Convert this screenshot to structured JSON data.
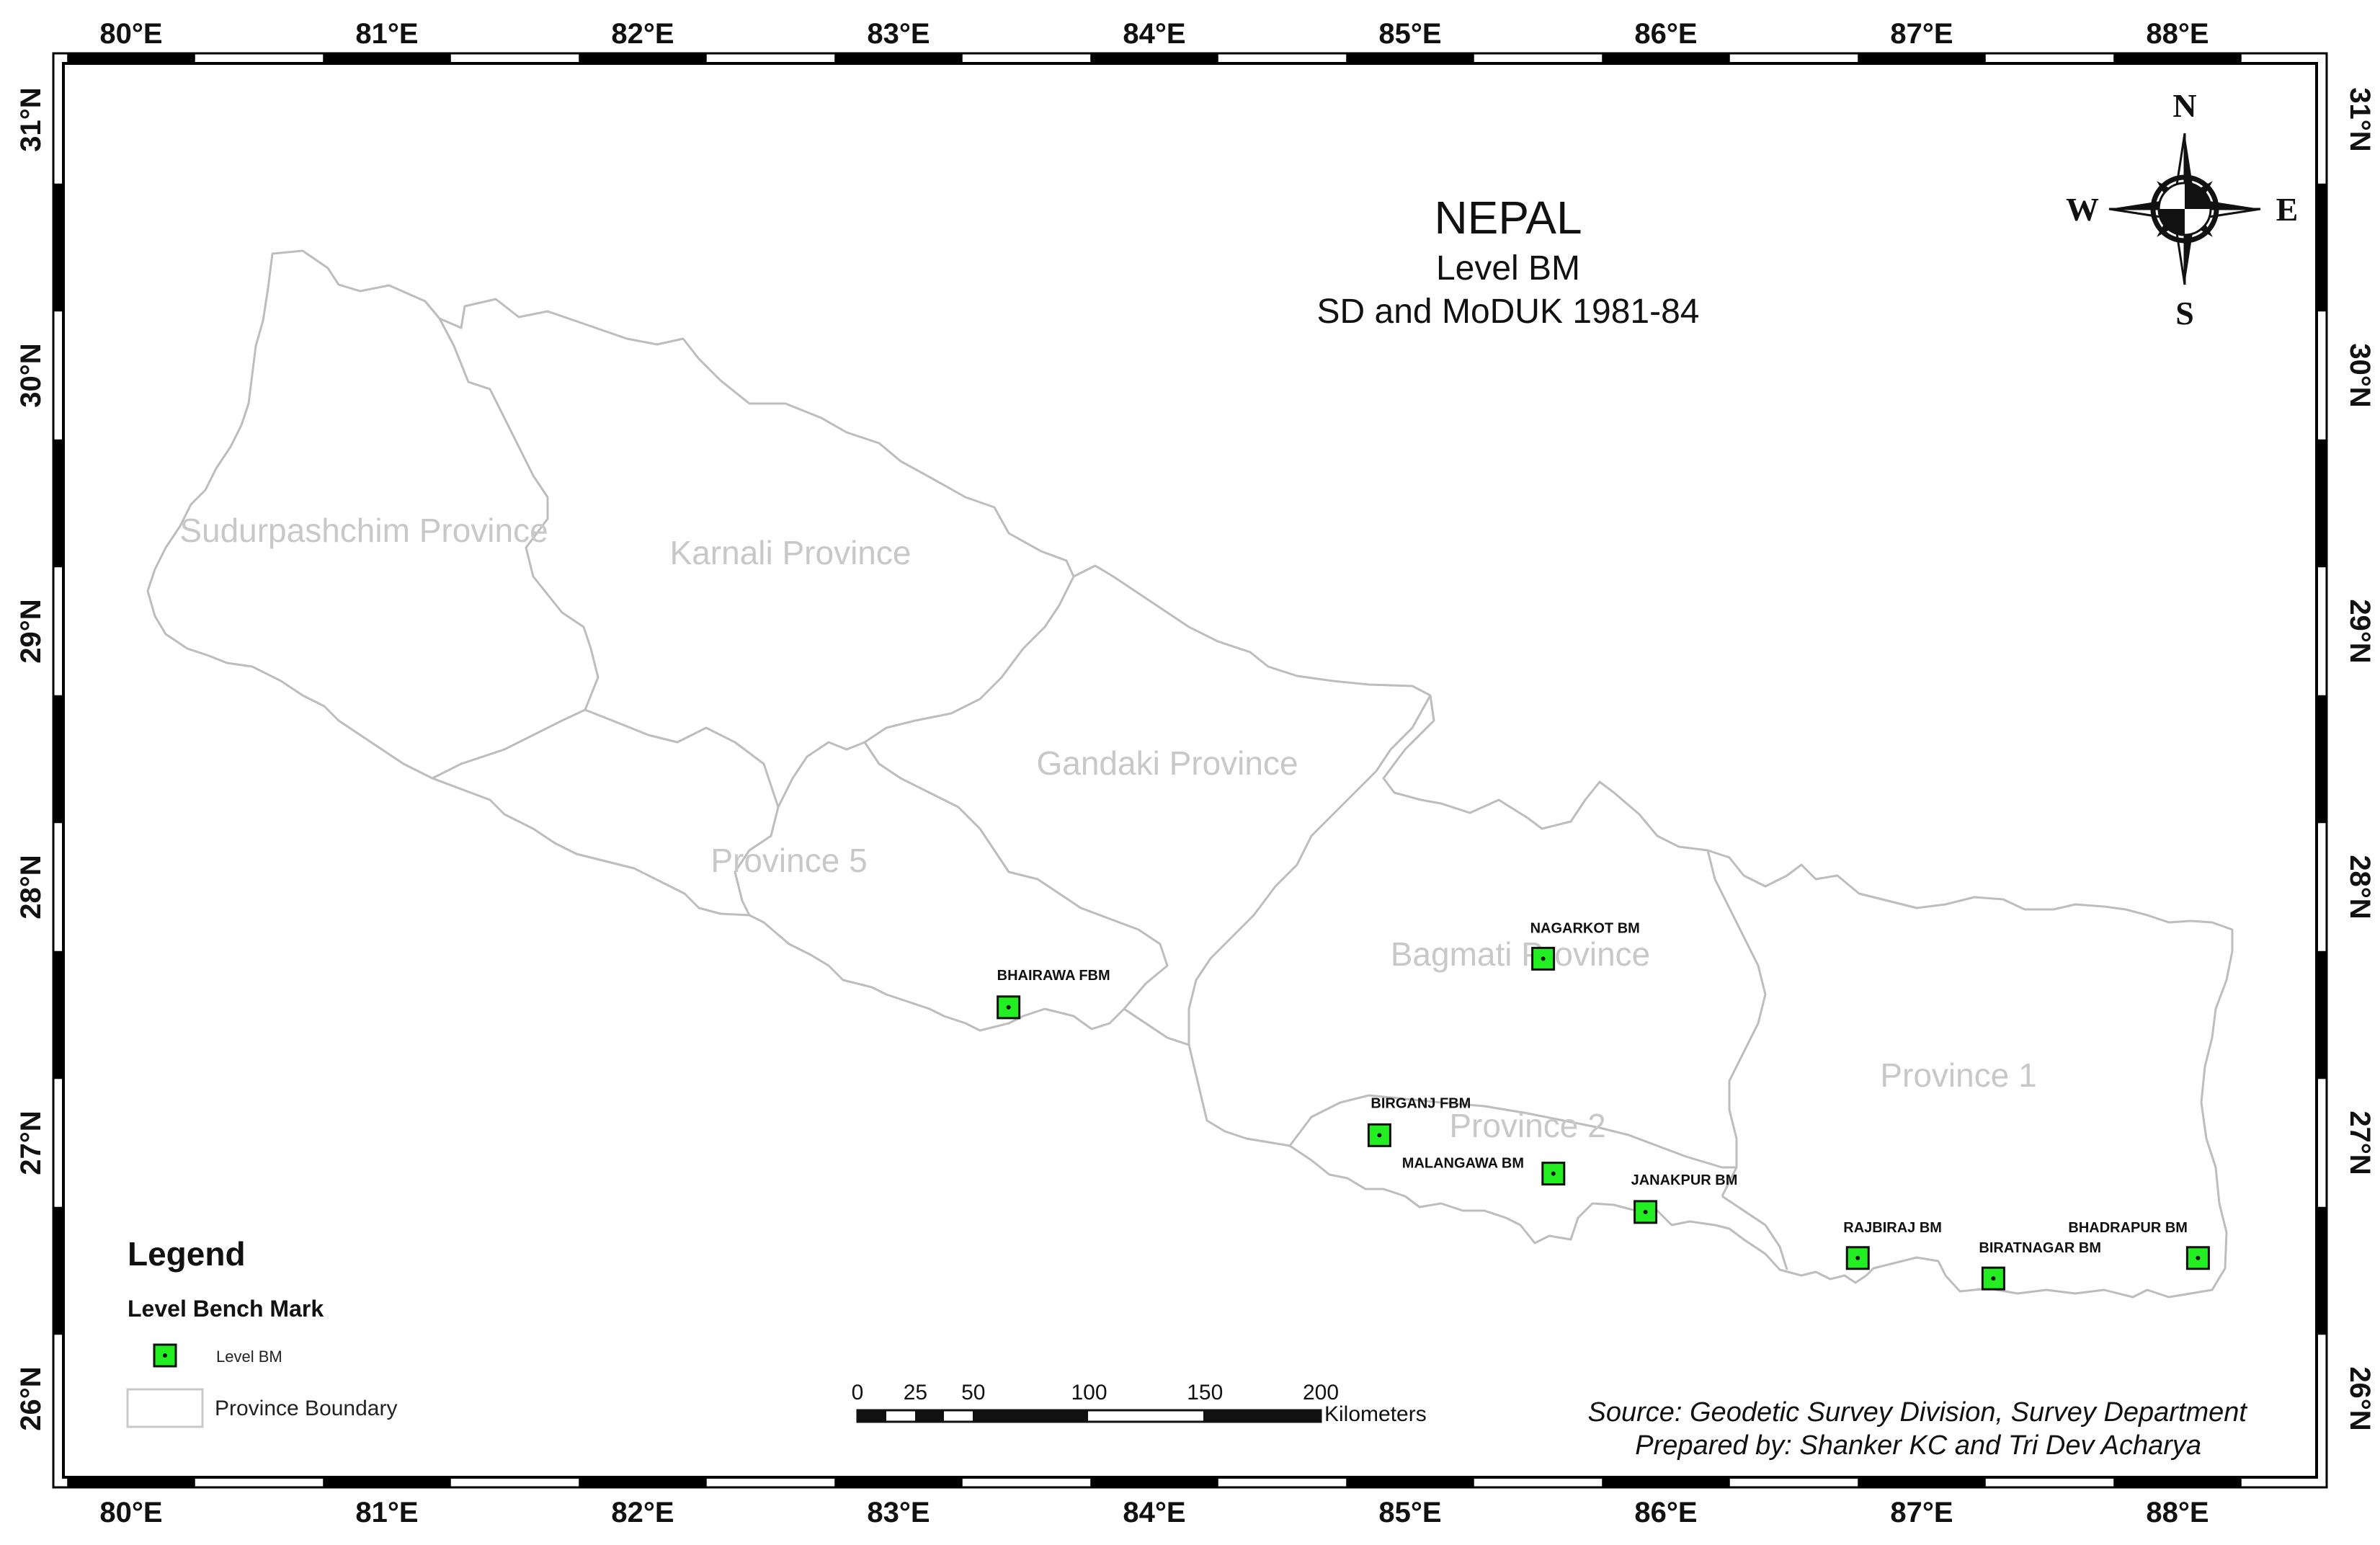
{
  "title": {
    "main": "NEPAL",
    "line2": "Level BM",
    "line3": "SD and MoDUK 1981-84"
  },
  "compass": {
    "n": "N",
    "s": "S",
    "e": "E",
    "w": "W"
  },
  "longitude_labels": [
    "80°E",
    "81°E",
    "82°E",
    "83°E",
    "84°E",
    "85°E",
    "86°E",
    "87°E",
    "88°E"
  ],
  "latitude_labels": [
    "31°N",
    "30°N",
    "29°N",
    "28°N",
    "27°N",
    "26°N"
  ],
  "provinces": [
    {
      "id": "sudurpashchim",
      "label": "Sudurpashchim Province"
    },
    {
      "id": "karnali",
      "label": "Karnali Province"
    },
    {
      "id": "gandaki",
      "label": "Gandaki Province"
    },
    {
      "id": "province5",
      "label": "Province 5"
    },
    {
      "id": "bagmati",
      "label": "Bagmati Province"
    },
    {
      "id": "province2",
      "label": "Province 2"
    },
    {
      "id": "province1",
      "label": "Province 1"
    }
  ],
  "benchmarks": [
    {
      "id": "bhairawa",
      "label": "BHAIRAWA FBM",
      "lon": 83.43,
      "lat": 27.53
    },
    {
      "id": "birganj",
      "label": "BIRGANJ FBM",
      "lon": 84.88,
      "lat": 27.03
    },
    {
      "id": "nagarkot",
      "label": "NAGARKOT BM",
      "lon": 85.52,
      "lat": 27.72
    },
    {
      "id": "malangawa",
      "label": "MALANGAWA BM",
      "lon": 85.56,
      "lat": 26.88
    },
    {
      "id": "janakpur",
      "label": "JANAKPUR BM",
      "lon": 85.92,
      "lat": 26.73
    },
    {
      "id": "rajbiraj",
      "label": "RAJBIRAJ BM",
      "lon": 86.75,
      "lat": 26.55
    },
    {
      "id": "biratnagar",
      "label": "BIRATNAGAR BM",
      "lon": 87.28,
      "lat": 26.47
    },
    {
      "id": "bhadrapur",
      "label": "BHADRAPUR BM",
      "lon": 88.08,
      "lat": 26.55
    }
  ],
  "legend": {
    "title": "Legend",
    "section": "Level Bench Mark",
    "bm_item": "Level BM",
    "boundary_item": "Province Boundary"
  },
  "scalebar": {
    "ticks": [
      "0",
      "25",
      "50",
      "100",
      "150",
      "200"
    ],
    "unit": "Kilometers"
  },
  "source": {
    "line1": "Source: Geodetic Survey Division, Survey Department",
    "line2": "Prepared by: Shanker KC and Tri Dev Acharya"
  },
  "colors": {
    "bm_fill": "#22ee22",
    "boundary": "#bdbdbd",
    "province_label": "#c8c8c8",
    "frame": "#000000"
  }
}
